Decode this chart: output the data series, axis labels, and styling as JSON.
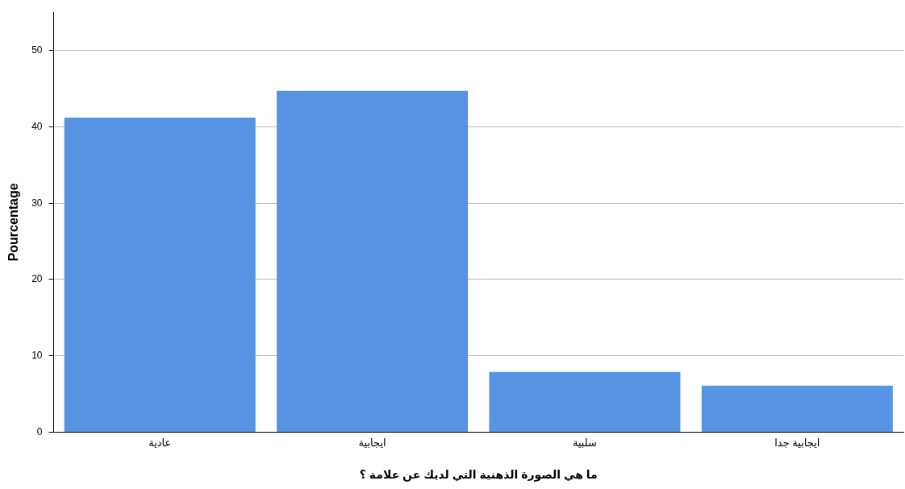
{
  "chart_data": {
    "type": "bar",
    "xlabel": "ما هي الصورة الذهنية التي لديك عن علامة ؟",
    "ylabel": "Pourcentage",
    "categories": [
      "عادية",
      "ايجابية",
      "سلبية",
      "ايجابية جدا"
    ],
    "values": [
      41.2,
      44.7,
      7.9,
      6.1
    ],
    "color": "#5694e3",
    "ylim": [
      0,
      55
    ],
    "yticks": [
      0,
      10,
      20,
      30,
      40,
      50
    ],
    "grid": "y",
    "legend": false
  }
}
